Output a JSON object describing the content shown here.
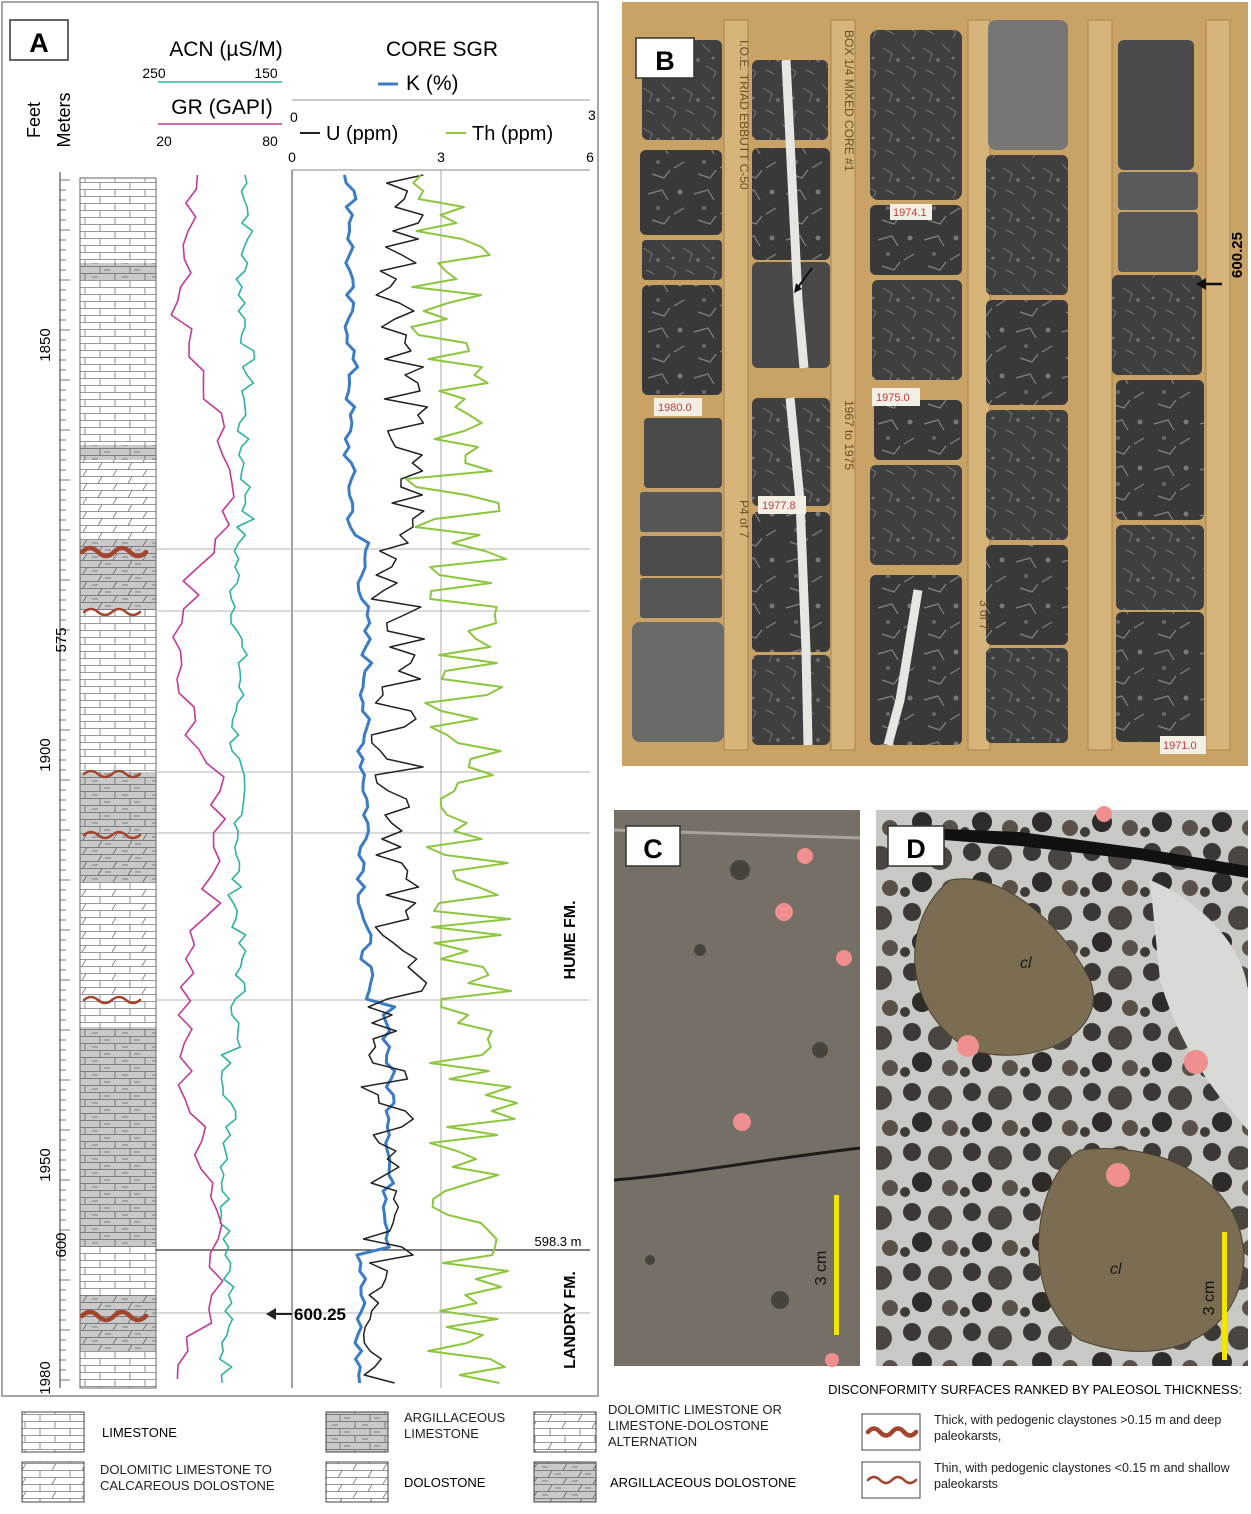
{
  "panel_labels": {
    "a": "A",
    "b": "B",
    "c": "C",
    "d": "D"
  },
  "well_log": {
    "depth_headers": {
      "feet": "Feet",
      "meters": "Meters"
    },
    "feet_ticks": [
      "1850",
      "1900",
      "1950",
      "1980"
    ],
    "meter_ticks": [
      "575",
      "600"
    ],
    "acn": {
      "title": "ACN (µS/M)",
      "left": "250",
      "right": "150",
      "color": "#2bb3a3"
    },
    "gr": {
      "title": "GR (GAPI)",
      "left": "20",
      "right": "80",
      "color": "#c2399a"
    },
    "core_sgr": {
      "title": "CORE SGR",
      "k_label": "K (%)",
      "k_left": "0",
      "k_right": "3",
      "k_color": "#3b7cc4",
      "u_label": "U (ppm)",
      "u_color": "#222222",
      "th_label": "Th (ppm)",
      "th_color": "#8cc63f",
      "bottom_ticks": [
        "0",
        "3",
        "6"
      ]
    },
    "formations": {
      "upper": "HUME FM.",
      "lower": "LANDRY FM."
    },
    "boundary_depth": "598.3 m",
    "marker_depth": "600.25"
  },
  "core_photo": {
    "marker_depth": "600.25",
    "box_tags": [
      "1980.0",
      "1975.0",
      "1974.1",
      "1977.8",
      "1971.0"
    ],
    "handwriting": [
      "I.O.E. TRIAD EBBUTT C-50",
      "BOX 1/4 MIXED CORE #1",
      "1967 to 1975",
      "P4 of 7",
      "3 of 7"
    ]
  },
  "scale_bars": {
    "c": "3 cm",
    "d": "3 cm",
    "color": "#f2e600"
  },
  "clast_label": "cl",
  "legend": {
    "lithologies": [
      "LIMESTONE",
      "ARGILLACEOUS LIMESTONE",
      "DOLOMITIC LIMESTONE OR LIMESTONE-DOLOSTONE ALTERNATION",
      "DOLOMITIC LIMESTONE TO CALCAREOUS DOLOSTONE",
      "DOLOSTONE",
      "ARGILLACEOUS DOLOSTONE"
    ],
    "disconformity_title": "DISCONFORMITY SURFACES RANKED BY PALEOSOL THICKNESS:",
    "thick": "Thick, with pedogenic claystones >0.15 m and deep paleokarsts,",
    "thin": "Thin, with pedogenic claystones <0.15  m and shallow paleokarsts",
    "wave_color": "#a5442d"
  }
}
